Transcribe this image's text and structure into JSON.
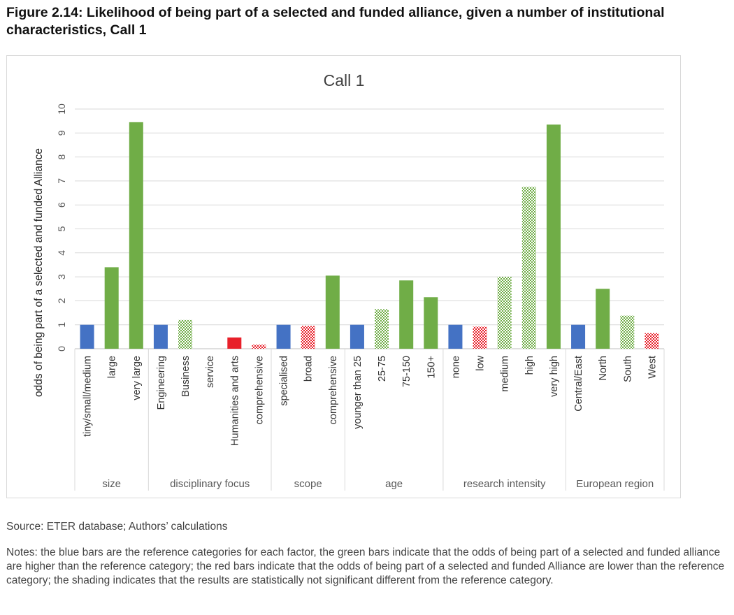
{
  "figure": {
    "title": "Figure 2.14: Likelihood of being part of a selected and funded alliance, given a number of institutional characteristics, Call 1",
    "source": "Source: ETER database; Authors’ calculations",
    "notes": "Notes: the blue bars are the reference categories for each factor, the green bars indicate that the odds of being part of a selected and funded alliance are higher than the reference category; the red bars indicate that the odds of being part of a selected and funded Alliance are lower than the reference category; the shading indicates that the results are statistically not significant different from the reference category."
  },
  "colors": {
    "reference": "#4472C4",
    "higher": "#70AD47",
    "lower": "#E8202A",
    "gridline": "#d9d9d9",
    "axis_text": "#595959"
  },
  "chart_data": {
    "type": "bar",
    "title": "Call 1",
    "ylabel": "odds of being part of a selected and funded Alliance",
    "ylim": [
      0,
      10
    ],
    "yticks": [
      "0",
      "1",
      "2",
      "3",
      "4",
      "5",
      "6",
      "7",
      "8",
      "9",
      "10"
    ],
    "grid": true,
    "groups": [
      {
        "name": "size",
        "categories": [
          {
            "label": "tiny/small/medium",
            "value": 1.0,
            "kind": "reference",
            "hatched": false
          },
          {
            "label": "large",
            "value": 3.4,
            "kind": "higher",
            "hatched": false
          },
          {
            "label": "very large",
            "value": 9.45,
            "kind": "higher",
            "hatched": false
          }
        ]
      },
      {
        "name": "disciplinary focus",
        "categories": [
          {
            "label": "Engineering",
            "value": 1.0,
            "kind": "reference",
            "hatched": false
          },
          {
            "label": "Business",
            "value": 1.2,
            "kind": "higher",
            "hatched": true
          },
          {
            "label": "service",
            "value": 0,
            "kind": "higher",
            "hatched": true
          },
          {
            "label": "Humanities and arts",
            "value": 0.47,
            "kind": "lower",
            "hatched": false
          },
          {
            "label": "comprehensive",
            "value": 0.17,
            "kind": "lower",
            "hatched": true
          }
        ]
      },
      {
        "name": "scope",
        "categories": [
          {
            "label": "specialised",
            "value": 1.0,
            "kind": "reference",
            "hatched": false
          },
          {
            "label": "broad",
            "value": 0.95,
            "kind": "lower",
            "hatched": true
          },
          {
            "label": "comprehensive",
            "value": 3.05,
            "kind": "higher",
            "hatched": false
          }
        ]
      },
      {
        "name": "age",
        "categories": [
          {
            "label": "younger than 25",
            "value": 1.0,
            "kind": "reference",
            "hatched": false
          },
          {
            "label": "25-75",
            "value": 1.65,
            "kind": "higher",
            "hatched": true
          },
          {
            "label": "75-150",
            "value": 2.85,
            "kind": "higher",
            "hatched": false
          },
          {
            "label": "150+",
            "value": 2.15,
            "kind": "higher",
            "hatched": false
          }
        ]
      },
      {
        "name": "research intensity",
        "categories": [
          {
            "label": "none",
            "value": 1.0,
            "kind": "reference",
            "hatched": false
          },
          {
            "label": "low",
            "value": 0.92,
            "kind": "lower",
            "hatched": true
          },
          {
            "label": "medium",
            "value": 3.0,
            "kind": "higher",
            "hatched": true
          },
          {
            "label": "high",
            "value": 6.75,
            "kind": "higher",
            "hatched": true
          },
          {
            "label": "very high",
            "value": 9.35,
            "kind": "higher",
            "hatched": false
          }
        ]
      },
      {
        "name": "European region",
        "categories": [
          {
            "label": "Central/East",
            "value": 1.0,
            "kind": "reference",
            "hatched": false
          },
          {
            "label": "North",
            "value": 2.5,
            "kind": "higher",
            "hatched": false
          },
          {
            "label": "South",
            "value": 1.38,
            "kind": "higher",
            "hatched": true
          },
          {
            "label": "West",
            "value": 0.65,
            "kind": "lower",
            "hatched": true
          }
        ]
      }
    ]
  }
}
